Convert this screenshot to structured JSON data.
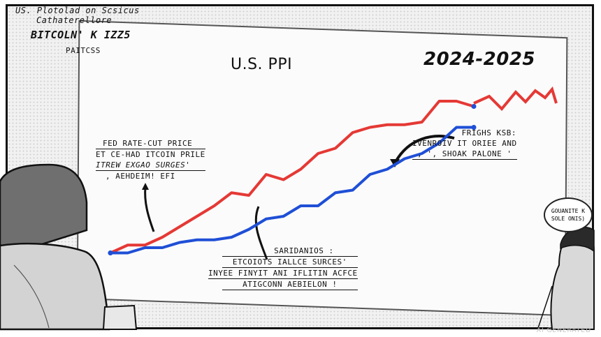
{
  "caption": {
    "line1": "US. Plotolad on Scsicus",
    "line2": "Cathaterellore",
    "line3": "BITCOLN' K IZZ5",
    "line4": "PAITCSS"
  },
  "chart": {
    "title": "U.S. PPI",
    "years": "2024-2025"
  },
  "annotations": {
    "left": [
      "FED RATE-CUT PRICE",
      "ET CE-HAD ITCOIN PRILE",
      "ITREW EXGAO SURGES'",
      ", AEHDEIM! EFI"
    ],
    "middle": [
      "SARIDANIOS :",
      "ETCOIOTS IALLCE SURCES'",
      "INYEE FINYIT ANI IFLITIN ACFCE",
      "ATIGCONN AEBIELON !"
    ],
    "right": [
      "FRIGHS KSB:",
      "IVENROIV IT ORIEE AND",
      ", ', SHOAK PALONE '"
    ]
  },
  "speech_bubble": [
    "GOUANITE K",
    "SOLE ONIS)"
  ],
  "watermark": "AI GENERATED",
  "colors": {
    "red_line": "#e53935",
    "blue_line": "#1f4fd6",
    "ink": "#111111"
  },
  "chart_data": {
    "type": "line",
    "title": "U.S. PPI",
    "series": [
      {
        "color": "#e53935",
        "values": [
          1,
          2.5,
          2.5,
          4,
          6,
          8,
          10,
          12.5,
          12,
          16,
          15,
          17,
          20,
          21,
          24,
          25,
          25.5,
          25.5,
          26,
          30,
          30,
          29
        ]
      },
      {
        "color": "#1f4fd6",
        "values": [
          1,
          1,
          2,
          2,
          3,
          3.5,
          3.5,
          4,
          5.5,
          7.5,
          8,
          10,
          10,
          12.5,
          13,
          16,
          17,
          19,
          20,
          22,
          25,
          25
        ]
      }
    ],
    "ylim": [
      0,
      32
    ],
    "grid": false,
    "legend": "none"
  }
}
